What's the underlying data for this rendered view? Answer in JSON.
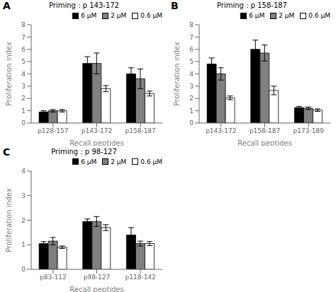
{
  "chart_data": [
    {
      "type": "bar",
      "title": "Priming : p 143-172",
      "annotations": [
        "A"
      ],
      "xlabel": "Recall peptides",
      "ylabel": "Proliferation index",
      "categories": [
        "p128-157",
        "p143-172",
        "p158-187"
      ],
      "series": [
        {
          "name": "6 μM",
          "color": "#000000",
          "values": [
            0.9,
            4.85,
            4.0
          ],
          "errors": [
            0.1,
            0.55,
            0.5
          ]
        },
        {
          "name": "2 μM",
          "color": "#808080",
          "values": [
            1.0,
            4.85,
            3.6
          ],
          "errors": [
            0.1,
            0.85,
            0.8
          ]
        },
        {
          "name": "0.6 μM",
          "color": "#ffffff",
          "values": [
            1.0,
            2.8,
            2.4
          ],
          "errors": [
            0.1,
            0.25,
            0.2
          ]
        }
      ],
      "ylim": [
        0,
        8
      ],
      "yticks": [
        0,
        1,
        2,
        3,
        4,
        5,
        6,
        7,
        8
      ],
      "legend": "upper right"
    },
    {
      "type": "bar",
      "title": "Priming : p 158-187",
      "annotations": [
        "B"
      ],
      "xlabel": "Recall peptides",
      "ylabel": "Proliferation index",
      "categories": [
        "p143-172",
        "p158-187",
        "p173-189"
      ],
      "series": [
        {
          "name": "6 μM",
          "color": "#000000",
          "values": [
            4.8,
            6.0,
            1.25
          ],
          "errors": [
            0.5,
            0.75,
            0.1
          ]
        },
        {
          "name": "2 μM",
          "color": "#808080",
          "values": [
            4.0,
            5.7,
            1.2
          ],
          "errors": [
            0.5,
            0.65,
            0.1
          ]
        },
        {
          "name": "0.6 μM",
          "color": "#ffffff",
          "values": [
            2.05,
            2.65,
            1.05
          ],
          "errors": [
            0.15,
            0.35,
            0.1
          ]
        }
      ],
      "ylim": [
        0,
        8
      ],
      "yticks": [
        0,
        1,
        2,
        3,
        4,
        5,
        6,
        7,
        8
      ],
      "legend": "upper right"
    },
    {
      "type": "bar",
      "title": "Priming : p 98-127",
      "annotations": [
        "C"
      ],
      "xlabel": "Recall peptides",
      "ylabel": "Proliferation index",
      "categories": [
        "p83-112",
        "p98-127",
        "p118-142"
      ],
      "series": [
        {
          "name": "6 μM",
          "color": "#000000",
          "values": [
            1.05,
            1.95,
            1.4
          ],
          "errors": [
            0.08,
            0.1,
            0.3
          ]
        },
        {
          "name": "2 μM",
          "color": "#808080",
          "values": [
            1.15,
            1.95,
            1.05
          ],
          "errors": [
            0.15,
            0.2,
            0.1
          ]
        },
        {
          "name": "0.6 μM",
          "color": "#ffffff",
          "values": [
            0.9,
            1.7,
            1.05
          ],
          "errors": [
            0.05,
            0.12,
            0.08
          ]
        }
      ],
      "ylim": [
        0,
        4
      ],
      "yticks": [
        0,
        1,
        2,
        3,
        4
      ],
      "legend": "upper right"
    }
  ]
}
